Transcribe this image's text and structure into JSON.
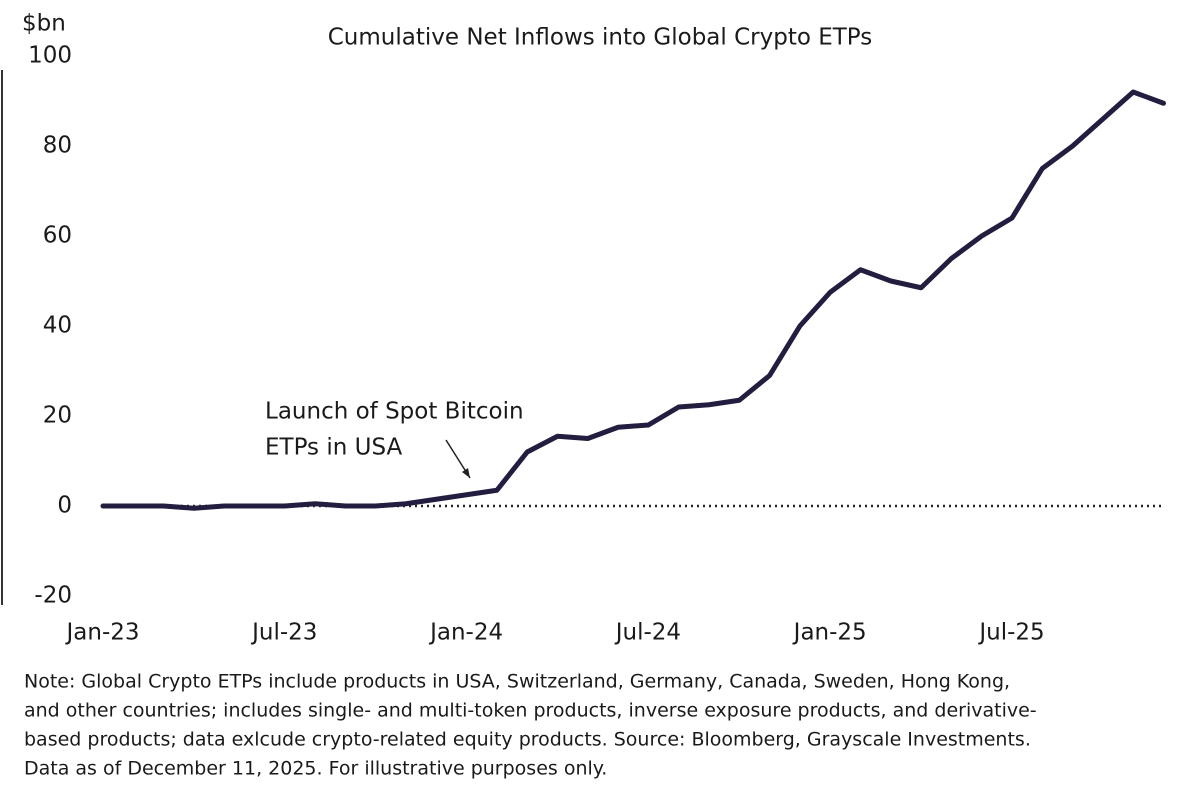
{
  "chart_data": {
    "type": "line",
    "title": "Cumulative Net Inflows into Global Crypto ETPs",
    "y_label": "$bn",
    "annotation": [
      "Launch of Spot Bitcoin",
      "ETPs in USA"
    ],
    "note": [
      "Note: Global Crypto ETPs include products in USA, Switzerland, Germany, Canada, Sweden, Hong Kong,",
      "and other countries; includes single- and multi-token products, inverse exposure products, and derivative-",
      "based products; data exlcude crypto-related equity products. Source: Bloomberg, Grayscale Investments.",
      "Data as of December 11, 2025. For illustrative purposes only."
    ],
    "x": [
      "2023-01",
      "2023-02",
      "2023-03",
      "2023-04",
      "2023-05",
      "2023-06",
      "2023-07",
      "2023-08",
      "2023-09",
      "2023-10",
      "2023-11",
      "2023-12",
      "2024-01",
      "2024-02",
      "2024-03",
      "2024-04",
      "2024-05",
      "2024-06",
      "2024-07",
      "2024-08",
      "2024-09",
      "2024-10",
      "2024-11",
      "2024-12",
      "2025-01",
      "2025-02",
      "2025-03",
      "2025-04",
      "2025-05",
      "2025-06",
      "2025-07",
      "2025-08",
      "2025-09",
      "2025-10",
      "2025-11",
      "2025-12"
    ],
    "series": [
      {
        "name": "Cumulative Net Inflows",
        "color": "#231d3f",
        "values": [
          0,
          0,
          0,
          -0.5,
          0,
          0,
          0,
          0.5,
          0,
          0,
          0.5,
          1.5,
          2.5,
          3.5,
          12,
          15.5,
          15,
          17.5,
          18,
          22,
          22.5,
          23.5,
          29,
          40,
          47.5,
          52.5,
          50,
          48.5,
          55,
          60,
          64,
          75,
          80,
          86,
          92,
          89.5
        ]
      }
    ],
    "xticks": [
      {
        "value": "2023-01",
        "label": "Jan-23"
      },
      {
        "value": "2023-07",
        "label": "Jul-23"
      },
      {
        "value": "2024-01",
        "label": "Jan-24"
      },
      {
        "value": "2024-07",
        "label": "Jul-24"
      },
      {
        "value": "2025-01",
        "label": "Jan-25"
      },
      {
        "value": "2025-07",
        "label": "Jul-25"
      }
    ],
    "ylim": [
      -20,
      100
    ],
    "yticks": [
      -20,
      0,
      20,
      40,
      60,
      80,
      100
    ]
  }
}
